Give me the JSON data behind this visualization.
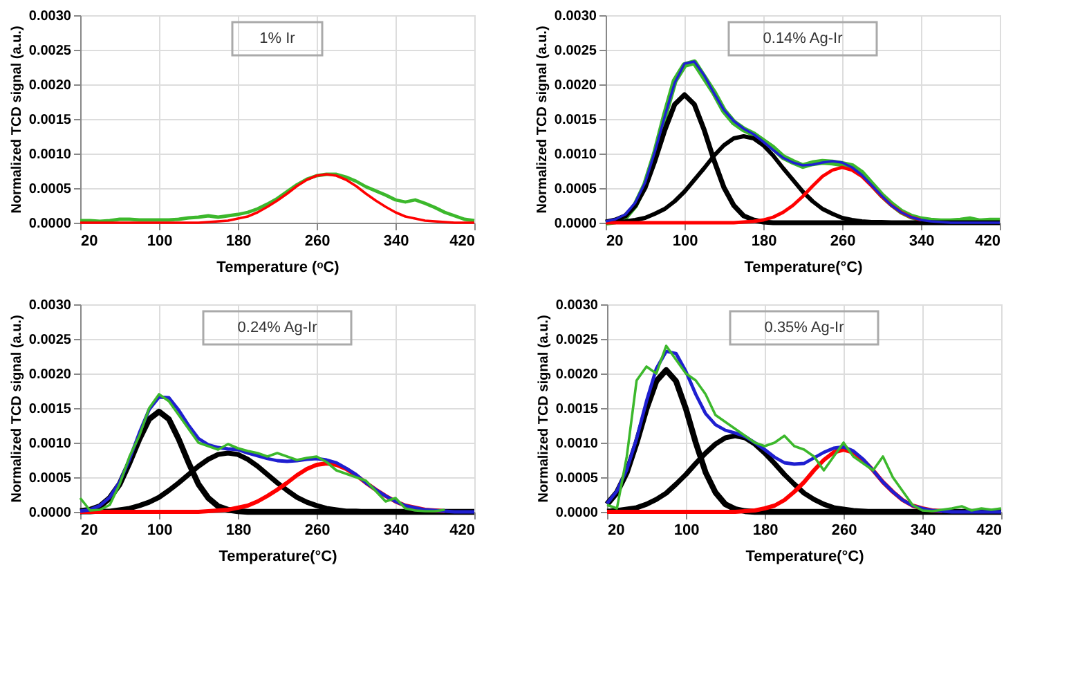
{
  "chart_data": [
    {
      "type": "line",
      "line_style": "solid",
      "xlabel": "Temperature (ᵒC)",
      "ylabel": "Normalized TCD signal (a.u.)",
      "annotations": [
        "1% Ir"
      ],
      "grid": true,
      "xlim": [
        20,
        420
      ],
      "xticks": [
        20,
        100,
        180,
        260,
        340,
        420
      ],
      "ylim": [
        0,
        0.003
      ],
      "yticks": [
        {
          "value": 0,
          "label": "0.0000"
        },
        {
          "value": 0.0005,
          "label": "0.0005"
        },
        {
          "value": 0.001,
          "label": "0.0010"
        },
        {
          "value": 0.0015,
          "label": "0.0015"
        },
        {
          "value": 0.002,
          "label": "0.0020"
        },
        {
          "value": 0.0025,
          "label": "0.0025"
        },
        {
          "value": 0.003,
          "label": "0.0030"
        }
      ],
      "x": [
        20,
        30,
        40,
        50,
        60,
        70,
        80,
        90,
        100,
        110,
        120,
        130,
        140,
        150,
        160,
        170,
        180,
        190,
        200,
        210,
        220,
        230,
        240,
        250,
        260,
        270,
        280,
        290,
        300,
        310,
        320,
        330,
        340,
        350,
        360,
        370,
        380,
        390,
        400,
        410,
        420
      ],
      "series": [
        {
          "color": "#3cb82c",
          "values": [
            3e-05,
            3e-05,
            2e-05,
            3e-05,
            5e-05,
            5e-05,
            4e-05,
            4e-05,
            4e-05,
            4e-05,
            5e-05,
            7e-05,
            8e-05,
            0.0001,
            8e-05,
            0.0001,
            0.00012,
            0.00015,
            0.0002,
            0.00027,
            0.00035,
            0.00045,
            0.00055,
            0.00063,
            0.00068,
            0.0007,
            0.0007,
            0.00066,
            0.0006,
            0.00052,
            0.00046,
            0.0004,
            0.00033,
            0.0003,
            0.00033,
            0.00028,
            0.00022,
            0.00015,
            0.0001,
            5e-05,
            3e-05
          ]
        },
        {
          "color": "#ff0000",
          "values": [
            0,
            0,
            0,
            0,
            0,
            0,
            0,
            0,
            0,
            0,
            0,
            0,
            0,
            1e-05,
            2e-05,
            3e-05,
            6e-05,
            9e-05,
            0.00015,
            0.00023,
            0.00032,
            0.00042,
            0.00053,
            0.00062,
            0.00068,
            0.0007,
            0.00068,
            0.00062,
            0.00053,
            0.00042,
            0.00032,
            0.00023,
            0.00015,
            9e-05,
            6e-05,
            3e-05,
            2e-05,
            1e-05,
            0,
            0,
            0
          ]
        }
      ]
    },
    {
      "type": "line",
      "line_style": "solid",
      "xlabel": "Temperature(°C)",
      "ylabel": "Normalized TCD signal (a.u.)",
      "annotations": [
        "0.14% Ag-Ir"
      ],
      "grid": true,
      "xlim": [
        20,
        420
      ],
      "xticks": [
        20,
        100,
        180,
        260,
        340,
        420
      ],
      "ylim": [
        0,
        0.003
      ],
      "yticks": [
        {
          "value": 0,
          "label": "0.0000"
        },
        {
          "value": 0.0005,
          "label": "0.0005"
        },
        {
          "value": 0.001,
          "label": "0.0010"
        },
        {
          "value": 0.0015,
          "label": "0.0015"
        },
        {
          "value": 0.002,
          "label": "0.0020"
        },
        {
          "value": 0.0025,
          "label": "0.0025"
        },
        {
          "value": 0.003,
          "label": "0.0030"
        }
      ],
      "x": [
        20,
        30,
        40,
        50,
        60,
        70,
        80,
        90,
        100,
        110,
        120,
        130,
        140,
        150,
        160,
        170,
        180,
        190,
        200,
        210,
        220,
        230,
        240,
        250,
        260,
        270,
        280,
        290,
        300,
        310,
        320,
        330,
        340,
        350,
        360,
        370,
        380,
        390,
        400,
        410,
        420
      ],
      "series": [
        {
          "color": "#3cb82c",
          "values": [
            0,
            2e-05,
            8e-05,
            0.00025,
            0.00055,
            0.001,
            0.00155,
            0.00205,
            0.00228,
            0.00232,
            0.0021,
            0.00188,
            0.00162,
            0.00145,
            0.00135,
            0.00128,
            0.00118,
            0.00108,
            0.00095,
            0.00088,
            0.00082,
            0.00086,
            0.00088,
            0.00087,
            0.00085,
            0.00082,
            0.00072,
            0.00056,
            0.0004,
            0.00027,
            0.00016,
            9e-05,
            5e-05,
            3e-05,
            2e-05,
            2e-05,
            3e-05,
            5e-05,
            2e-05,
            3e-05,
            3e-05
          ]
        },
        {
          "color": "#000000",
          "values": [
            1e-05,
            4e-05,
            0.0001,
            0.00025,
            0.00051,
            0.0009,
            0.00134,
            0.00171,
            0.00185,
            0.00171,
            0.00134,
            0.0009,
            0.00051,
            0.00025,
            0.0001,
            4e-05,
            1e-05,
            0,
            0,
            0,
            0,
            0,
            0,
            0,
            0,
            0,
            0,
            0,
            0,
            0,
            0,
            0,
            0,
            0,
            0,
            0,
            0,
            0,
            0,
            0,
            0
          ]
        },
        {
          "color": "#000000",
          "values": [
            1e-05,
            1e-05,
            2e-05,
            4e-05,
            7e-05,
            0.00013,
            0.0002,
            0.00031,
            0.00045,
            0.00062,
            0.00079,
            0.00097,
            0.00112,
            0.00122,
            0.00125,
            0.00122,
            0.00112,
            0.00097,
            0.00079,
            0.00062,
            0.00045,
            0.00031,
            0.0002,
            0.00013,
            7e-05,
            4e-05,
            2e-05,
            1e-05,
            1e-05,
            0,
            0,
            0,
            0,
            0,
            0,
            0,
            0,
            0,
            0,
            0,
            0
          ]
        },
        {
          "color": "#ff0000",
          "values": [
            0,
            0,
            0,
            0,
            0,
            0,
            0,
            0,
            0,
            0,
            0,
            0,
            0,
            0,
            1e-05,
            2e-05,
            4e-05,
            8e-05,
            0.00015,
            0.00025,
            0.00038,
            0.00053,
            0.00067,
            0.00076,
            0.0008,
            0.00076,
            0.00067,
            0.00053,
            0.00038,
            0.00025,
            0.00015,
            8e-05,
            4e-05,
            null,
            null,
            null,
            null,
            null,
            null,
            null,
            null
          ]
        },
        {
          "color": "#1f1fd0",
          "values": [
            2e-05,
            5e-05,
            0.00012,
            0.00029,
            0.00058,
            0.00103,
            0.00154,
            0.00202,
            0.0023,
            0.00233,
            0.00213,
            0.00187,
            0.00163,
            0.00147,
            0.00136,
            0.00128,
            0.00117,
            0.00105,
            0.00094,
            0.00087,
            0.00083,
            0.00084,
            0.00087,
            0.00089,
            0.00087,
            0.0008,
            0.00069,
            0.00054,
            0.00039,
            0.00025,
            0.00015,
            8e-05,
            4e-05,
            2e-05,
            1e-05,
            0,
            0,
            0,
            0,
            0,
            0
          ]
        }
      ]
    },
    {
      "type": "line",
      "line_style": "solid",
      "xlabel": "Temperature(°C)",
      "ylabel": "Normalized TCD signal (a.u.)",
      "annotations": [
        "0.24% Ag-Ir"
      ],
      "grid": true,
      "xlim": [
        20,
        420
      ],
      "xticks": [
        20,
        100,
        180,
        260,
        340,
        420
      ],
      "ylim": [
        0,
        0.003
      ],
      "yticks": [
        {
          "value": 0,
          "label": "0.0000"
        },
        {
          "value": 0.0005,
          "label": "0.0005"
        },
        {
          "value": 0.001,
          "label": "0.0010"
        },
        {
          "value": 0.0015,
          "label": "0.0015"
        },
        {
          "value": 0.002,
          "label": "0.0020"
        },
        {
          "value": 0.0025,
          "label": "0.0025"
        },
        {
          "value": 0.003,
          "label": "0.0030"
        }
      ],
      "x": [
        20,
        30,
        40,
        50,
        60,
        70,
        80,
        90,
        100,
        110,
        120,
        130,
        140,
        150,
        160,
        170,
        180,
        190,
        200,
        210,
        220,
        230,
        240,
        250,
        260,
        270,
        280,
        290,
        300,
        310,
        320,
        330,
        340,
        350,
        360,
        370,
        380,
        390,
        400,
        410,
        420
      ],
      "series": [
        {
          "color": "#000000",
          "values": [
            1e-05,
            3e-05,
            8e-05,
            0.0002,
            0.0004,
            0.00071,
            0.00105,
            0.00134,
            0.00145,
            0.00134,
            0.00105,
            0.00071,
            0.0004,
            0.0002,
            8e-05,
            3e-05,
            1e-05,
            0,
            0,
            0,
            0,
            0,
            0,
            0,
            0,
            0,
            0,
            0,
            0,
            0,
            0,
            0,
            0,
            0,
            0,
            0,
            0,
            0,
            0,
            0,
            0
          ]
        },
        {
          "color": "#000000",
          "values": [
            0,
            0,
            1e-05,
            1e-05,
            3e-05,
            5e-05,
            9e-05,
            0.00014,
            0.00021,
            0.00031,
            0.00042,
            0.00054,
            0.00066,
            0.00076,
            0.00083,
            0.00085,
            0.00083,
            0.00076,
            0.00066,
            0.00054,
            0.00042,
            0.00031,
            0.00021,
            0.00014,
            9e-05,
            5e-05,
            3e-05,
            1e-05,
            1e-05,
            0,
            0,
            0,
            0,
            0,
            0,
            0,
            0,
            0,
            0,
            0,
            0
          ]
        },
        {
          "color": "#ff0000",
          "values": [
            0,
            0,
            0,
            0,
            0,
            0,
            0,
            0,
            0,
            0,
            0,
            0,
            0,
            1e-05,
            2e-05,
            3e-05,
            6e-05,
            9e-05,
            0.00015,
            0.00023,
            0.00032,
            0.00042,
            0.00053,
            0.00062,
            0.00068,
            0.0007,
            0.00068,
            0.00062,
            0.00053,
            0.00042,
            0.00032,
            0.00023,
            0.00015,
            9e-05,
            6e-05,
            3e-05,
            2e-05,
            1e-05,
            null,
            null,
            null
          ]
        },
        {
          "color": "#1f1fd0",
          "values": [
            1e-05,
            3e-05,
            9e-05,
            0.00021,
            0.00043,
            0.00076,
            0.00114,
            0.00148,
            0.00166,
            0.00165,
            0.00147,
            0.00125,
            0.00106,
            0.00097,
            0.00093,
            0.00091,
            0.0009,
            0.00085,
            0.00081,
            0.00077,
            0.00074,
            0.00073,
            0.00074,
            0.00076,
            0.00077,
            0.00075,
            0.00071,
            0.00063,
            0.00054,
            0.00042,
            0.00032,
            0.00023,
            0.00015,
            9e-05,
            6e-05,
            3e-05,
            2e-05,
            1e-05,
            0,
            0,
            0
          ]
        },
        {
          "color": "#3cb82c",
          "values": [
            0.0002,
            2e-05,
            3e-05,
            0.0001,
            0.0004,
            0.0008,
            0.0011,
            0.0015,
            0.0017,
            0.0016,
            0.0014,
            0.0012,
            0.001,
            0.00095,
            0.0009,
            0.00098,
            0.00092,
            0.00088,
            0.00085,
            0.0008,
            0.00085,
            0.0008,
            0.00075,
            0.00078,
            0.0008,
            0.00072,
            0.0006,
            0.00055,
            0.0005,
            0.00045,
            0.0003,
            0.00015,
            0.0002,
            5e-05,
            2e-05,
            1e-05,
            1e-05,
            3e-05,
            null,
            null,
            null
          ]
        }
      ]
    },
    {
      "type": "line",
      "line_style": "solid",
      "xlabel": "Temperature(°C)",
      "ylabel": "Normalized TCD signal (a.u.)",
      "annotations": [
        "0.35% Ag-Ir"
      ],
      "grid": true,
      "xlim": [
        20,
        420
      ],
      "xticks": [
        20,
        100,
        180,
        260,
        340,
        420
      ],
      "ylim": [
        0,
        0.003
      ],
      "yticks": [
        {
          "value": 0,
          "label": "0.0000"
        },
        {
          "value": 0.0005,
          "label": "0.0005"
        },
        {
          "value": 0.001,
          "label": "0.0010"
        },
        {
          "value": 0.0015,
          "label": "0.0015"
        },
        {
          "value": 0.002,
          "label": "0.0020"
        },
        {
          "value": 0.0025,
          "label": "0.0025"
        },
        {
          "value": 0.003,
          "label": "0.0030"
        }
      ],
      "x": [
        20,
        30,
        40,
        50,
        60,
        70,
        80,
        90,
        100,
        110,
        120,
        130,
        140,
        150,
        160,
        170,
        180,
        190,
        200,
        210,
        220,
        230,
        240,
        250,
        260,
        270,
        280,
        290,
        300,
        310,
        320,
        330,
        340,
        350,
        360,
        370,
        380,
        390,
        400,
        410,
        420
      ],
      "series": [
        {
          "color": "#000000",
          "values": [
            0.00011,
            0.00028,
            0.00057,
            0.001,
            0.00149,
            0.00189,
            0.00205,
            0.00189,
            0.00149,
            0.001,
            0.00057,
            0.00028,
            0.00011,
            4e-05,
            1e-05,
            0,
            0,
            0,
            0,
            0,
            0,
            0,
            0,
            0,
            0,
            0,
            0,
            0,
            0,
            0,
            0,
            0,
            0,
            0,
            0,
            0,
            0,
            0,
            0,
            0,
            0
          ]
        },
        {
          "color": "#000000",
          "values": [
            1e-05,
            2e-05,
            4e-05,
            6e-05,
            0.00011,
            0.00018,
            0.00027,
            0.0004,
            0.00054,
            0.0007,
            0.00085,
            0.00098,
            0.00107,
            0.0011,
            0.00107,
            0.00098,
            0.00085,
            0.0007,
            0.00054,
            0.0004,
            0.00027,
            0.00018,
            0.00011,
            6e-05,
            4e-05,
            2e-05,
            1e-05,
            0,
            0,
            0,
            0,
            0,
            0,
            0,
            0,
            0,
            0,
            0,
            0,
            0,
            0
          ]
        },
        {
          "color": "#ff0000",
          "values": [
            0,
            0,
            0,
            0,
            0,
            0,
            0,
            0,
            0,
            0,
            0,
            0,
            0,
            0,
            1e-05,
            2e-05,
            5e-05,
            9e-05,
            0.00017,
            0.00029,
            0.00043,
            0.0006,
            0.00075,
            0.00086,
            0.0009,
            0.00086,
            0.00075,
            0.0006,
            0.00043,
            0.00029,
            0.00017,
            9e-05,
            5e-05,
            2e-05,
            1e-05,
            null,
            null,
            null,
            null,
            null,
            null
          ]
        },
        {
          "color": "#1f1fd0",
          "values": [
            0.00012,
            0.0003,
            0.00061,
            0.00106,
            0.0016,
            0.00207,
            0.00232,
            0.00229,
            0.00203,
            0.0017,
            0.00142,
            0.00126,
            0.00118,
            0.00114,
            0.00109,
            0.001,
            0.0009,
            0.00079,
            0.00071,
            0.00069,
            0.0007,
            0.00078,
            0.00086,
            0.00092,
            0.00094,
            0.00088,
            0.00076,
            0.0006,
            0.00043,
            0.00029,
            0.00017,
            9e-05,
            5e-05,
            2e-05,
            1e-05,
            0,
            0,
            0,
            0,
            0,
            0
          ]
        },
        {
          "color": "#3cb82c",
          "values": [
            0.0001,
            5e-05,
            0.0008,
            0.0019,
            0.0021,
            0.002,
            0.0024,
            0.0022,
            0.002,
            0.0019,
            0.0017,
            0.0014,
            0.0013,
            0.0012,
            0.0011,
            0.001,
            0.00095,
            0.001,
            0.0011,
            0.00095,
            0.0009,
            0.0008,
            0.0006,
            0.0008,
            0.001,
            0.0008,
            0.0007,
            0.0006,
            0.0008,
            0.0005,
            0.0003,
            0.0001,
            2e-05,
            1e-05,
            3e-05,
            5e-05,
            8e-05,
            2e-05,
            5e-05,
            3e-05,
            5e-05
          ]
        }
      ]
    }
  ]
}
